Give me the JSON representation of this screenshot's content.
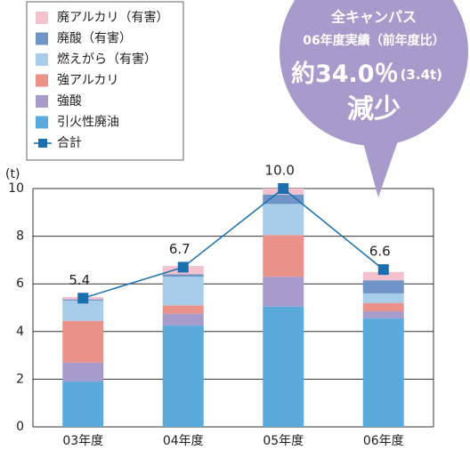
{
  "chart_data": {
    "type": "stacked_bar_line",
    "y_label": "(t)",
    "categories": [
      "03年度",
      "04年度",
      "05年度",
      "06年度"
    ],
    "series": [
      {
        "name": "引火性廃油",
        "color": "#5aabdc",
        "values": [
          1.9,
          4.25,
          5.05,
          4.55
        ]
      },
      {
        "name": "強酸",
        "color": "#a79bcc",
        "values": [
          0.8,
          0.5,
          1.25,
          0.3
        ]
      },
      {
        "name": "強アルカリ",
        "color": "#ea9289",
        "values": [
          1.75,
          0.35,
          1.75,
          0.35
        ]
      },
      {
        "name": "燃えがら（有害）",
        "color": "#a7cdeb",
        "values": [
          0.85,
          1.2,
          1.3,
          0.4
        ]
      },
      {
        "name": "廃酸（有害）",
        "color": "#6f95c6",
        "values": [
          0.05,
          0.1,
          0.4,
          0.55
        ]
      },
      {
        "name": "廃アルカリ（有害）",
        "color": "#f4c1cf",
        "values": [
          0.1,
          0.35,
          0.25,
          0.35
        ]
      }
    ],
    "total": {
      "name": "合計",
      "color": "#1b6fae",
      "values": [
        5.4,
        6.7,
        10.0,
        6.6
      ],
      "value_labels": [
        "5.4",
        "6.7",
        "10.0",
        "6.6"
      ]
    },
    "ylim": [
      0,
      10
    ],
    "yticks": [
      0,
      2,
      4,
      6,
      8,
      10
    ],
    "grid": true,
    "callout": [
      "全キャンパス",
      "06年度実績（前年度比）",
      "約34.0％",
      "(3.4t)",
      "減少"
    ]
  }
}
